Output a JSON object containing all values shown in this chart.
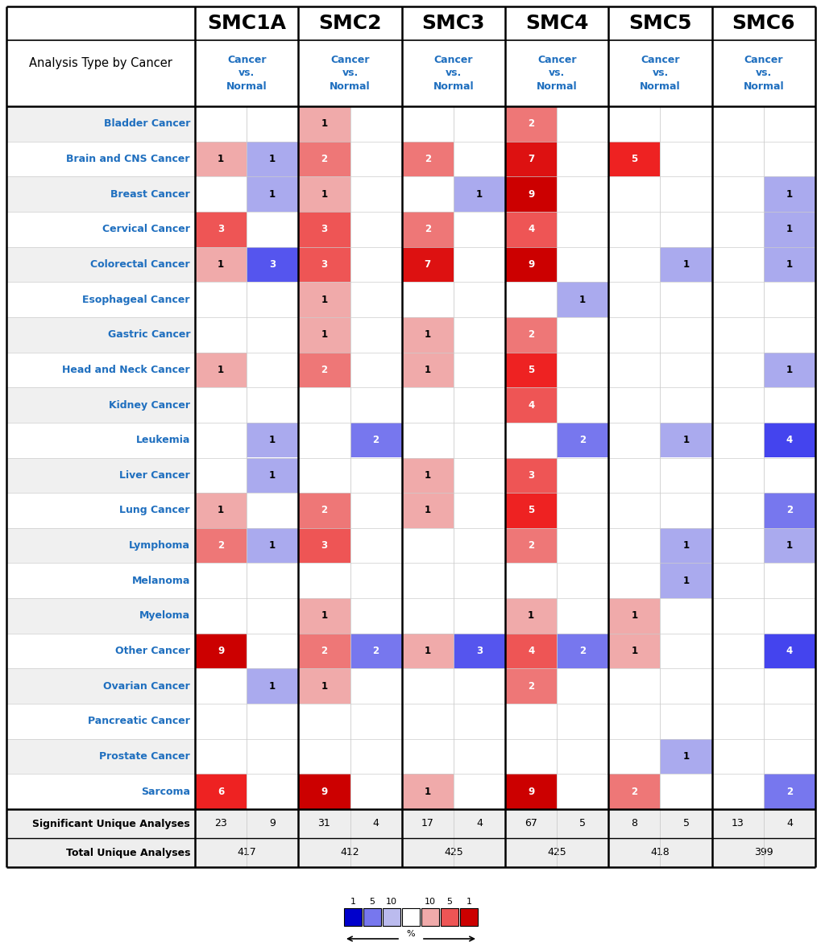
{
  "smc_factors": [
    "SMC1A",
    "SMC2",
    "SMC3",
    "SMC4",
    "SMC5",
    "SMC6"
  ],
  "cancer_types": [
    "Bladder Cancer",
    "Brain and CNS Cancer",
    "Breast Cancer",
    "Cervical Cancer",
    "Colorectal Cancer",
    "Esophageal Cancer",
    "Gastric Cancer",
    "Head and Neck Cancer",
    "Kidney Cancer",
    "Leukemia",
    "Liver Cancer",
    "Lung Cancer",
    "Lymphoma",
    "Melanoma",
    "Myeloma",
    "Other Cancer",
    "Ovarian Cancer",
    "Pancreatic Cancer",
    "Prostate Cancer",
    "Sarcoma"
  ],
  "analysis_label": "Analysis Type by Cancer",
  "data": {
    "Bladder Cancer": [
      null,
      null,
      1,
      null,
      null,
      null,
      2,
      null,
      null,
      null,
      null,
      null
    ],
    "Brain and CNS Cancer": [
      1,
      1,
      2,
      null,
      2,
      null,
      7,
      null,
      5,
      null,
      null,
      null
    ],
    "Breast Cancer": [
      null,
      1,
      1,
      null,
      null,
      1,
      9,
      null,
      null,
      null,
      null,
      1
    ],
    "Cervical Cancer": [
      3,
      null,
      3,
      null,
      2,
      null,
      4,
      null,
      null,
      null,
      null,
      1
    ],
    "Colorectal Cancer": [
      1,
      3,
      3,
      null,
      7,
      null,
      9,
      null,
      null,
      1,
      null,
      1
    ],
    "Esophageal Cancer": [
      null,
      null,
      1,
      null,
      null,
      null,
      null,
      1,
      null,
      null,
      null,
      null
    ],
    "Gastric Cancer": [
      null,
      null,
      1,
      null,
      1,
      null,
      2,
      null,
      null,
      null,
      null,
      null
    ],
    "Head and Neck Cancer": [
      1,
      null,
      2,
      null,
      1,
      null,
      5,
      null,
      null,
      null,
      null,
      1
    ],
    "Kidney Cancer": [
      null,
      null,
      null,
      null,
      null,
      null,
      4,
      null,
      null,
      null,
      null,
      null
    ],
    "Leukemia": [
      null,
      1,
      null,
      2,
      null,
      null,
      null,
      2,
      null,
      1,
      null,
      4
    ],
    "Liver Cancer": [
      null,
      1,
      null,
      null,
      1,
      null,
      3,
      null,
      null,
      null,
      null,
      null
    ],
    "Lung Cancer": [
      1,
      null,
      2,
      null,
      1,
      null,
      5,
      null,
      null,
      null,
      null,
      2
    ],
    "Lymphoma": [
      2,
      1,
      3,
      null,
      null,
      null,
      2,
      null,
      null,
      1,
      null,
      1
    ],
    "Melanoma": [
      null,
      null,
      null,
      null,
      null,
      null,
      null,
      null,
      null,
      1,
      null,
      null
    ],
    "Myeloma": [
      null,
      null,
      1,
      null,
      null,
      null,
      1,
      null,
      1,
      null,
      null,
      null
    ],
    "Other Cancer": [
      9,
      null,
      2,
      2,
      1,
      3,
      4,
      2,
      1,
      null,
      null,
      4
    ],
    "Ovarian Cancer": [
      null,
      1,
      1,
      null,
      null,
      null,
      2,
      null,
      null,
      null,
      null,
      null
    ],
    "Pancreatic Cancer": [
      null,
      null,
      null,
      null,
      null,
      null,
      null,
      null,
      null,
      null,
      null,
      null
    ],
    "Prostate Cancer": [
      null,
      null,
      null,
      null,
      null,
      null,
      null,
      null,
      null,
      1,
      null,
      null
    ],
    "Sarcoma": [
      6,
      null,
      9,
      null,
      1,
      null,
      9,
      null,
      2,
      null,
      null,
      2
    ]
  },
  "col_types": [
    "red",
    "blue",
    "red",
    "blue",
    "red",
    "blue",
    "red",
    "blue",
    "red",
    "blue",
    "red",
    "blue"
  ],
  "significant_unique": [
    23,
    9,
    31,
    4,
    17,
    4,
    67,
    5,
    8,
    5,
    13,
    4
  ],
  "total_unique": [
    417,
    412,
    425,
    425,
    418,
    399
  ],
  "text_color_blue": "#1F6FBF",
  "header_color": "#1F6FBF",
  "grid_color": "#CCCCCC",
  "thick_line_color": "#000000"
}
